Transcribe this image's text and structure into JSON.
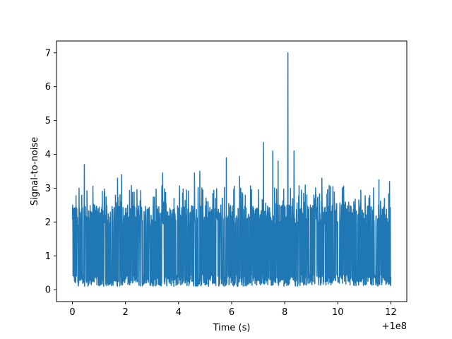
{
  "chart_data": {
    "type": "line",
    "title": "",
    "xlabel": "Time (s)",
    "ylabel": "Signal-to-noise",
    "x_offset_label": "+1e8",
    "xlim": [
      -0.6,
      12.6
    ],
    "ylim": [
      -0.35,
      7.35
    ],
    "xticks": [
      0,
      2,
      4,
      6,
      8,
      10,
      12
    ],
    "yticks": [
      0,
      1,
      2,
      3,
      4,
      5,
      6,
      7
    ],
    "grid": false,
    "legend": "none",
    "series": [
      {
        "color": "#1f77b4",
        "note_peaks": true,
        "x_range": [
          0,
          12
        ],
        "baseline_band": [
          0.1,
          2.5
        ],
        "peaks": [
          {
            "x": 0.45,
            "y": 3.7
          },
          {
            "x": 0.25,
            "y": 3.0
          },
          {
            "x": 1.7,
            "y": 3.3
          },
          {
            "x": 1.85,
            "y": 3.4
          },
          {
            "x": 3.4,
            "y": 3.45
          },
          {
            "x": 4.6,
            "y": 3.45
          },
          {
            "x": 4.8,
            "y": 3.5
          },
          {
            "x": 5.8,
            "y": 3.9
          },
          {
            "x": 6.3,
            "y": 3.35
          },
          {
            "x": 7.2,
            "y": 4.35
          },
          {
            "x": 7.55,
            "y": 4.1
          },
          {
            "x": 7.75,
            "y": 3.8
          },
          {
            "x": 8.12,
            "y": 7.0
          },
          {
            "x": 8.35,
            "y": 4.1
          },
          {
            "x": 9.4,
            "y": 3.3
          },
          {
            "x": 11.55,
            "y": 3.25
          },
          {
            "x": 11.95,
            "y": 3.2
          }
        ]
      }
    ]
  }
}
